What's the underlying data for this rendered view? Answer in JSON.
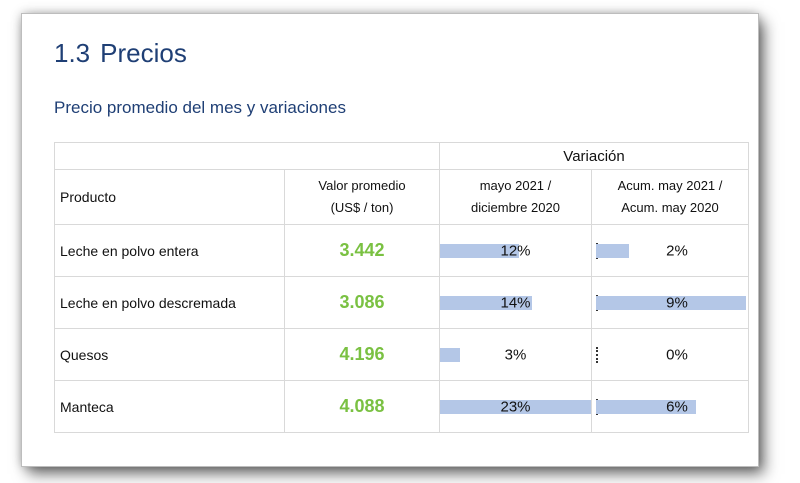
{
  "section": {
    "number": "1.3",
    "title": "Precios"
  },
  "subtitle": "Precio promedio del mes y variaciones",
  "table": {
    "header": {
      "variacion": "Variación",
      "producto": "Producto",
      "valor_line1": "Valor promedio",
      "valor_line2": "(US$ / ton)",
      "var1_line1": "mayo 2021 /",
      "var1_line2": "diciembre 2020",
      "var2_line1": "Acum. may 2021 /",
      "var2_line2": "Acum. may 2020"
    },
    "rows": [
      {
        "producto": "Leche en polvo entera",
        "valor": "3.442",
        "var1": "12%",
        "var1_value": 12,
        "var2": "2%",
        "var2_value": 2
      },
      {
        "producto": "Leche en polvo descremada",
        "valor": "3.086",
        "var1": "14%",
        "var1_value": 14,
        "var2": "9%",
        "var2_value": 9
      },
      {
        "producto": "Quesos",
        "valor": "4.196",
        "var1": "3%",
        "var1_value": 3,
        "var2": "0%",
        "var2_value": 0
      },
      {
        "producto": "Manteca",
        "valor": "4.088",
        "var1": "23%",
        "var1_value": 23,
        "var2": "6%",
        "var2_value": 6
      }
    ]
  },
  "colors": {
    "title": "#1f3f75",
    "value_green": "#7ac142",
    "bar_blue": "#b4c7e7"
  }
}
